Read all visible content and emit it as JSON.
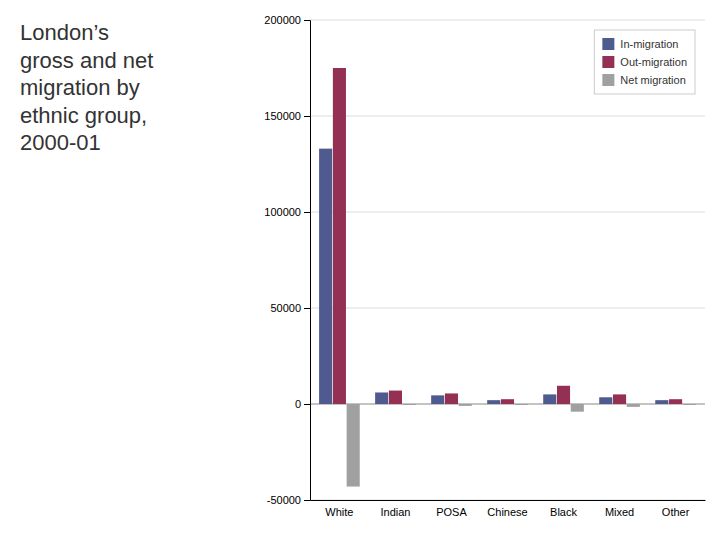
{
  "chart_data": {
    "type": "bar",
    "title": "London’s\ngross and net\nmigration by\nethnic group,\n2000-01",
    "categories": [
      "White",
      "Indian",
      "POSA",
      "Chinese",
      "Black",
      "Mixed",
      "Other"
    ],
    "series": [
      {
        "name": "In-migration",
        "color": "#4f5b8e",
        "values": [
          133000,
          6000,
          4500,
          2000,
          5000,
          3500,
          2000
        ]
      },
      {
        "name": "Out-migration",
        "color": "#943054",
        "values": [
          175000,
          7000,
          5500,
          2500,
          9500,
          5000,
          2500
        ]
      },
      {
        "name": "Net migration",
        "color": "#a0a0a0",
        "values": [
          -43000,
          -500,
          -1000,
          -500,
          -4000,
          -1500,
          -500
        ]
      }
    ],
    "ylim": [
      -50000,
      200000
    ],
    "yticks": [
      -50000,
      0,
      50000,
      100000,
      150000,
      200000
    ],
    "grid": true,
    "legend": "upper right"
  }
}
